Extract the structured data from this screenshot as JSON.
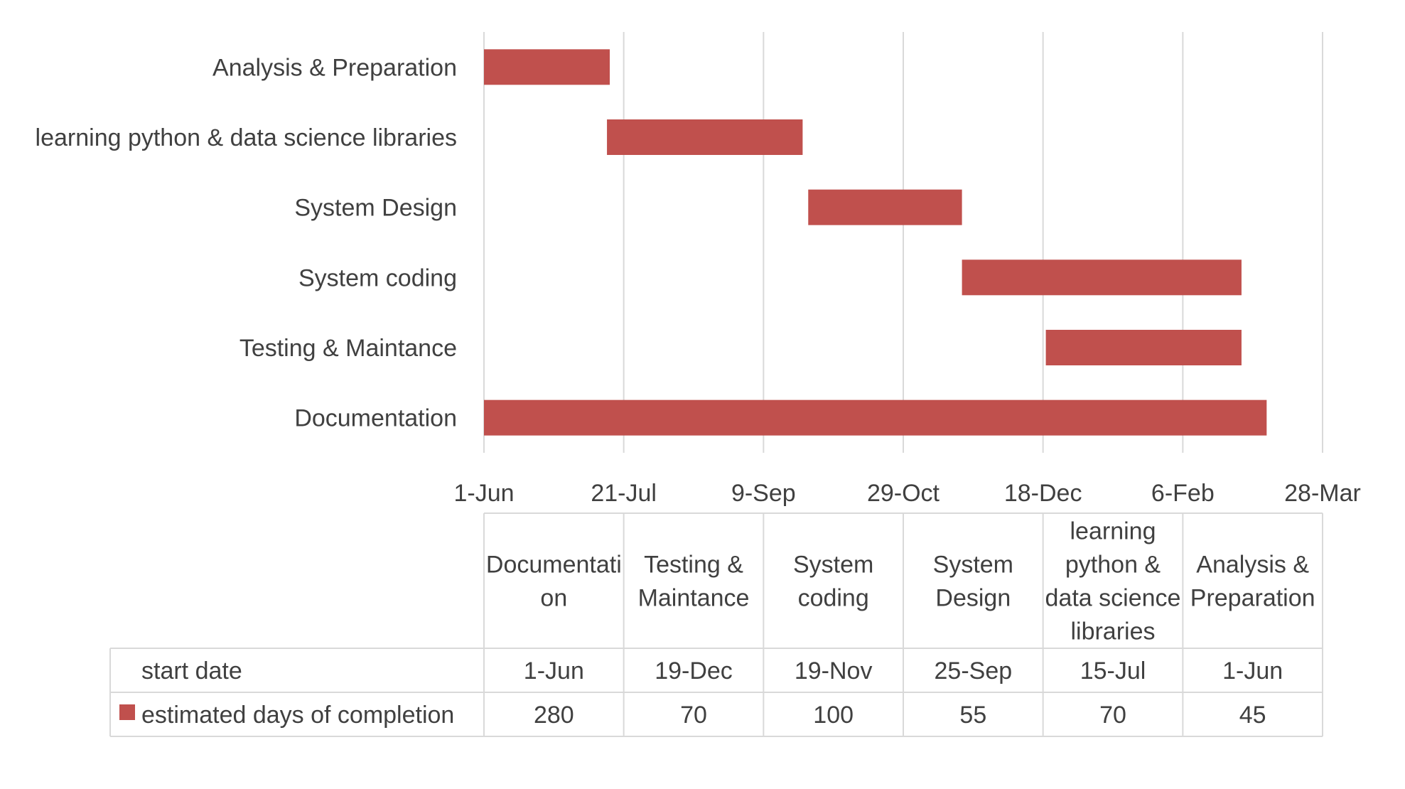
{
  "colors": {
    "bar": "#c0504d",
    "grid": "#d9d9d9",
    "border": "#d9d9d9",
    "text": "#404040"
  },
  "chart_data": {
    "type": "bar",
    "orientation": "horizontal",
    "stacked": true,
    "categories": [
      "Analysis & Preparation",
      "learning python & data science libraries",
      "System Design",
      "System coding",
      "Testing & Maintance ",
      "Documentation"
    ],
    "series": [
      {
        "role": "invisible-offset",
        "start_dates": [
          "1-Jun",
          "15-Jul",
          "25-Sep",
          "19-Nov",
          "19-Dec",
          "1-Jun"
        ]
      },
      {
        "name": "estimated days of completion",
        "values": [
          45,
          70,
          55,
          100,
          70,
          280
        ]
      }
    ],
    "x_ticks": [
      "1-Jun",
      "21-Jul",
      "9-Sep",
      "29-Oct",
      "18-Dec",
      "6-Feb",
      "28-Mar"
    ],
    "x_tick_days": [
      0,
      50,
      100,
      150,
      200,
      250,
      300
    ],
    "xlim_days": [
      0,
      300
    ],
    "grid": true,
    "data_table": {
      "columns": [
        [
          "Documentati",
          "on"
        ],
        [
          "Testing &",
          "Maintance"
        ],
        [
          "System",
          "coding"
        ],
        [
          "System",
          "Design"
        ],
        [
          "learning",
          "python &",
          "data science",
          "libraries"
        ],
        [
          "Analysis &",
          "Preparation"
        ]
      ],
      "rows": [
        {
          "label": "start date",
          "legend_key": false,
          "cells": [
            "1-Jun",
            "19-Dec",
            "19-Nov",
            "25-Sep",
            "15-Jul",
            "1-Jun"
          ]
        },
        {
          "label": "estimated days of completion",
          "legend_key": true,
          "cells": [
            "280",
            "70",
            "100",
            "55",
            "70",
            "45"
          ]
        }
      ]
    }
  }
}
